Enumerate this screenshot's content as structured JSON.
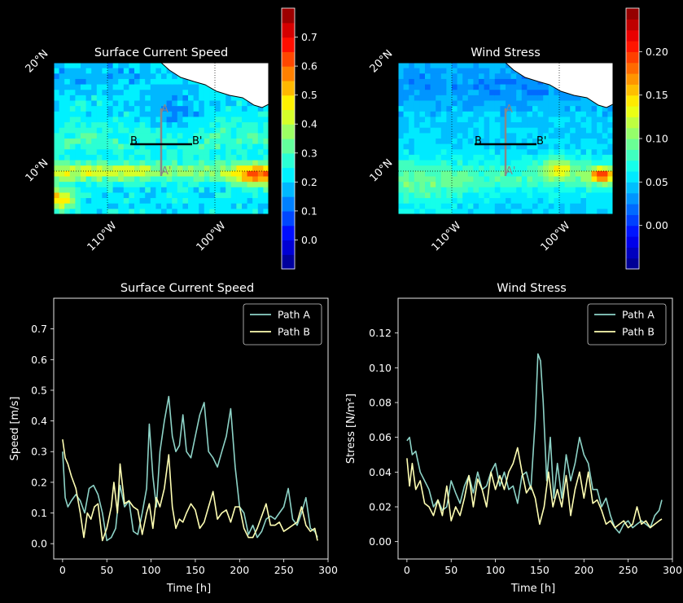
{
  "maps": [
    {
      "title": "Surface Current Speed",
      "lat_labels": [
        "20°N",
        "10°N"
      ],
      "lon_labels": [
        "110°W",
        "100°W"
      ],
      "transect_labels": {
        "a": "A",
        "a_end": "A'",
        "b": "B",
        "b_end": "B'"
      },
      "colorbar": {
        "min": -0.1,
        "max": 0.8,
        "step": 0.05,
        "ticks": [
          0.0,
          0.1,
          0.2,
          0.3,
          0.4,
          0.5,
          0.6,
          0.7
        ],
        "tick_labels": [
          "0.0",
          "0.1",
          "0.2",
          "0.3",
          "0.4",
          "0.5",
          "0.6",
          "0.7"
        ]
      }
    },
    {
      "title": "Wind Stress",
      "lat_labels": [
        "20°N",
        "10°N"
      ],
      "lon_labels": [
        "110°W",
        "100°W"
      ],
      "transect_labels": {
        "a": "A",
        "a_end": "A'",
        "b": "B",
        "b_end": "B'"
      },
      "colorbar": {
        "min": -0.05,
        "max": 0.25,
        "step": 0.0125,
        "ticks": [
          0.0,
          0.05,
          0.1,
          0.15,
          0.2
        ],
        "tick_labels": [
          "0.00",
          "0.05",
          "0.10",
          "0.15",
          "0.20"
        ]
      }
    }
  ],
  "chart_data": [
    {
      "type": "line",
      "title": "Surface Current Speed",
      "xlabel": "Time [h]",
      "ylabel": "Speed [m/s]",
      "xlim": [
        -10,
        300
      ],
      "ylim": [
        -0.05,
        0.8
      ],
      "xticks": [
        0,
        50,
        100,
        150,
        200,
        250,
        300
      ],
      "xtick_labels": [
        "0",
        "50",
        "100",
        "150",
        "200",
        "250",
        "300"
      ],
      "yticks": [
        0.0,
        0.1,
        0.2,
        0.3,
        0.4,
        0.5,
        0.6,
        0.7
      ],
      "ytick_labels": [
        "0.0",
        "0.1",
        "0.2",
        "0.3",
        "0.4",
        "0.5",
        "0.6",
        "0.7"
      ],
      "legend": "top-right",
      "series": [
        {
          "name": "Path A",
          "color": "#8dd3c7",
          "x": [
            0,
            3,
            6,
            10,
            15,
            20,
            25,
            30,
            35,
            40,
            45,
            50,
            55,
            60,
            65,
            70,
            75,
            80,
            85,
            90,
            95,
            98,
            102,
            106,
            110,
            115,
            120,
            124,
            128,
            132,
            136,
            140,
            145,
            150,
            155,
            160,
            165,
            170,
            175,
            180,
            185,
            190,
            195,
            200,
            205,
            210,
            215,
            220,
            225,
            230,
            235,
            240,
            245,
            250,
            255,
            260,
            265,
            270,
            275,
            280,
            285,
            288
          ],
          "values": [
            0.3,
            0.15,
            0.12,
            0.14,
            0.16,
            0.14,
            0.1,
            0.18,
            0.19,
            0.16,
            0.1,
            0.01,
            0.02,
            0.05,
            0.19,
            0.12,
            0.14,
            0.04,
            0.03,
            0.1,
            0.18,
            0.39,
            0.22,
            0.12,
            0.3,
            0.4,
            0.48,
            0.35,
            0.3,
            0.32,
            0.42,
            0.3,
            0.28,
            0.35,
            0.42,
            0.46,
            0.3,
            0.28,
            0.25,
            0.3,
            0.35,
            0.44,
            0.25,
            0.12,
            0.1,
            0.03,
            0.06,
            0.02,
            0.04,
            0.08,
            0.09,
            0.08,
            0.1,
            0.12,
            0.18,
            0.08,
            0.06,
            0.1,
            0.15,
            0.05,
            0.04,
            0.02
          ]
        },
        {
          "name": "Path B",
          "color": "#ffffb3",
          "x": [
            0,
            3,
            6,
            10,
            15,
            20,
            24,
            28,
            32,
            36,
            40,
            45,
            50,
            55,
            58,
            62,
            65,
            70,
            75,
            80,
            85,
            90,
            95,
            98,
            102,
            106,
            110,
            115,
            120,
            124,
            128,
            132,
            136,
            140,
            145,
            150,
            155,
            160,
            165,
            170,
            175,
            180,
            185,
            190,
            195,
            200,
            205,
            210,
            215,
            220,
            225,
            230,
            235,
            240,
            245,
            250,
            255,
            260,
            265,
            270,
            275,
            280,
            285,
            288
          ],
          "values": [
            0.34,
            0.28,
            0.26,
            0.22,
            0.18,
            0.1,
            0.02,
            0.1,
            0.08,
            0.12,
            0.13,
            0.01,
            0.05,
            0.12,
            0.2,
            0.1,
            0.26,
            0.13,
            0.14,
            0.12,
            0.11,
            0.03,
            0.1,
            0.13,
            0.05,
            0.15,
            0.12,
            0.18,
            0.29,
            0.12,
            0.05,
            0.08,
            0.07,
            0.1,
            0.13,
            0.11,
            0.05,
            0.07,
            0.12,
            0.17,
            0.08,
            0.1,
            0.11,
            0.07,
            0.12,
            0.12,
            0.05,
            0.02,
            0.02,
            0.05,
            0.09,
            0.13,
            0.06,
            0.06,
            0.07,
            0.04,
            0.05,
            0.06,
            0.07,
            0.12,
            0.06,
            0.04,
            0.05,
            0.01
          ]
        }
      ]
    },
    {
      "type": "line",
      "title": "Wind Stress",
      "xlabel": "Time [h]",
      "ylabel": "Stress [N/m²]",
      "xlim": [
        -10,
        300
      ],
      "ylim": [
        -0.01,
        0.14
      ],
      "xticks": [
        0,
        50,
        100,
        150,
        200,
        250,
        300
      ],
      "xtick_labels": [
        "0",
        "50",
        "100",
        "150",
        "200",
        "250",
        "300"
      ],
      "yticks": [
        0.0,
        0.02,
        0.04,
        0.06,
        0.08,
        0.1,
        0.12
      ],
      "ytick_labels": [
        "0.00",
        "0.02",
        "0.04",
        "0.06",
        "0.08",
        "0.10",
        "0.12"
      ],
      "legend": "top-right",
      "series": [
        {
          "name": "Path A",
          "color": "#8dd3c7",
          "x": [
            0,
            3,
            6,
            10,
            15,
            20,
            25,
            30,
            35,
            40,
            45,
            50,
            55,
            60,
            65,
            70,
            75,
            80,
            85,
            90,
            95,
            100,
            105,
            110,
            115,
            120,
            125,
            130,
            135,
            140,
            145,
            148,
            151,
            154,
            158,
            162,
            166,
            170,
            175,
            180,
            185,
            190,
            195,
            200,
            205,
            210,
            215,
            220,
            225,
            230,
            235,
            240,
            245,
            250,
            255,
            260,
            265,
            270,
            275,
            280,
            285,
            288
          ],
          "values": [
            0.058,
            0.06,
            0.05,
            0.052,
            0.04,
            0.035,
            0.03,
            0.02,
            0.024,
            0.018,
            0.02,
            0.035,
            0.028,
            0.022,
            0.032,
            0.038,
            0.028,
            0.04,
            0.03,
            0.032,
            0.04,
            0.045,
            0.032,
            0.04,
            0.03,
            0.032,
            0.022,
            0.038,
            0.04,
            0.03,
            0.07,
            0.108,
            0.104,
            0.08,
            0.035,
            0.06,
            0.025,
            0.045,
            0.025,
            0.05,
            0.035,
            0.045,
            0.06,
            0.05,
            0.045,
            0.03,
            0.03,
            0.02,
            0.025,
            0.015,
            0.008,
            0.005,
            0.01,
            0.012,
            0.008,
            0.01,
            0.012,
            0.01,
            0.008,
            0.015,
            0.018,
            0.024
          ]
        },
        {
          "name": "Path B",
          "color": "#ffffb3",
          "x": [
            0,
            3,
            6,
            10,
            15,
            20,
            25,
            30,
            35,
            40,
            45,
            50,
            55,
            60,
            65,
            70,
            75,
            80,
            85,
            90,
            95,
            100,
            105,
            110,
            115,
            120,
            125,
            130,
            135,
            140,
            145,
            150,
            155,
            160,
            165,
            170,
            175,
            180,
            185,
            190,
            195,
            200,
            205,
            210,
            215,
            220,
            225,
            230,
            235,
            240,
            245,
            250,
            255,
            260,
            265,
            270,
            275,
            280,
            285,
            288
          ],
          "values": [
            0.048,
            0.032,
            0.045,
            0.03,
            0.035,
            0.022,
            0.02,
            0.015,
            0.024,
            0.015,
            0.032,
            0.012,
            0.02,
            0.015,
            0.025,
            0.038,
            0.02,
            0.036,
            0.03,
            0.02,
            0.04,
            0.03,
            0.038,
            0.03,
            0.04,
            0.045,
            0.054,
            0.04,
            0.028,
            0.032,
            0.025,
            0.01,
            0.02,
            0.04,
            0.02,
            0.03,
            0.02,
            0.038,
            0.015,
            0.03,
            0.04,
            0.025,
            0.04,
            0.022,
            0.024,
            0.018,
            0.01,
            0.012,
            0.008,
            0.01,
            0.012,
            0.008,
            0.01,
            0.02,
            0.01,
            0.012,
            0.008,
            0.01,
            0.012,
            0.013
          ]
        }
      ]
    }
  ]
}
